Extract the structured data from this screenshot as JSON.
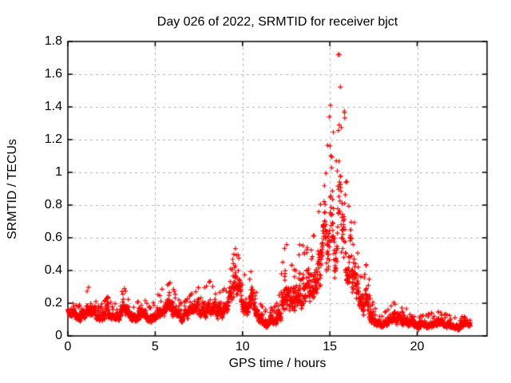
{
  "page": {
    "background": "#ffffff"
  },
  "chart_data": {
    "type": "scatter",
    "title": "Day 026 of 2022, SRMTID for receiver bjct",
    "meta": {
      "day": "026",
      "year": "2022",
      "receiver": "bjct"
    },
    "xlabel": "GPS time / hours",
    "ylabel": "SRMTID / TECUs",
    "xlim": [
      0,
      24
    ],
    "ylim": [
      0,
      1.8
    ],
    "x_ticks": [
      0,
      5,
      10,
      15,
      20
    ],
    "x_tick_labels": [
      "0",
      "5",
      "10",
      "15",
      "20"
    ],
    "y_ticks": [
      0,
      0.2,
      0.4,
      0.6,
      0.8,
      1,
      1.2,
      1.4,
      1.6,
      1.8
    ],
    "y_tick_labels": [
      "0",
      "0.2",
      "0.4",
      "0.6",
      "0.8",
      "1",
      "1.2",
      "1.4",
      "1.6",
      "1.8"
    ],
    "grid": true,
    "legend": false,
    "marker": "plus",
    "marker_color": "#ff0000",
    "marker_size_px": 7,
    "grid_color": "#b3b3b3",
    "axis_color": "#000000",
    "t_start": 0,
    "t_end": 23.05,
    "n_points": 2600,
    "seed": 20220126,
    "noise": {
      "blend": 0.22,
      "spread": 1.6,
      "spike_pow": 14,
      "shape": 1.5
    },
    "envelope_format": [
      "hour",
      "value_min",
      "value_max"
    ],
    "envelope": [
      [
        0.0,
        0.13,
        0.21
      ],
      [
        0.3,
        0.1,
        0.2
      ],
      [
        0.6,
        0.08,
        0.18
      ],
      [
        0.9,
        0.1,
        0.22
      ],
      [
        1.2,
        0.1,
        0.3
      ],
      [
        1.45,
        0.12,
        0.26
      ],
      [
        1.7,
        0.07,
        0.18
      ],
      [
        2.0,
        0.09,
        0.2
      ],
      [
        2.3,
        0.1,
        0.24
      ],
      [
        2.6,
        0.08,
        0.19
      ],
      [
        2.9,
        0.09,
        0.21
      ],
      [
        3.2,
        0.1,
        0.3
      ],
      [
        3.5,
        0.09,
        0.22
      ],
      [
        3.8,
        0.07,
        0.17
      ],
      [
        4.1,
        0.09,
        0.23
      ],
      [
        4.4,
        0.1,
        0.22
      ],
      [
        4.7,
        0.07,
        0.17
      ],
      [
        5.0,
        0.09,
        0.22
      ],
      [
        5.3,
        0.1,
        0.28
      ],
      [
        5.6,
        0.11,
        0.3
      ],
      [
        5.9,
        0.12,
        0.33
      ],
      [
        6.2,
        0.1,
        0.24
      ],
      [
        6.5,
        0.08,
        0.2
      ],
      [
        6.8,
        0.09,
        0.22
      ],
      [
        7.1,
        0.11,
        0.26
      ],
      [
        7.4,
        0.12,
        0.3
      ],
      [
        7.7,
        0.1,
        0.28
      ],
      [
        8.0,
        0.11,
        0.32
      ],
      [
        8.3,
        0.12,
        0.35
      ],
      [
        8.6,
        0.1,
        0.26
      ],
      [
        8.9,
        0.1,
        0.28
      ],
      [
        9.2,
        0.12,
        0.35
      ],
      [
        9.5,
        0.15,
        0.5
      ],
      [
        9.7,
        0.18,
        0.57
      ],
      [
        9.9,
        0.15,
        0.48
      ],
      [
        10.1,
        0.12,
        0.38
      ],
      [
        10.35,
        0.1,
        0.3
      ],
      [
        10.55,
        0.12,
        0.45
      ],
      [
        10.75,
        0.09,
        0.28
      ],
      [
        11.0,
        0.06,
        0.2
      ],
      [
        11.3,
        0.05,
        0.16
      ],
      [
        11.6,
        0.05,
        0.17
      ],
      [
        11.9,
        0.06,
        0.18
      ],
      [
        12.1,
        0.08,
        0.25
      ],
      [
        12.35,
        0.1,
        0.5
      ],
      [
        12.55,
        0.12,
        0.62
      ],
      [
        12.75,
        0.1,
        0.45
      ],
      [
        12.95,
        0.1,
        0.4
      ],
      [
        13.15,
        0.13,
        0.55
      ],
      [
        13.35,
        0.14,
        0.62
      ],
      [
        13.55,
        0.12,
        0.5
      ],
      [
        13.75,
        0.13,
        0.55
      ],
      [
        13.95,
        0.15,
        0.6
      ],
      [
        14.15,
        0.17,
        0.62
      ],
      [
        14.35,
        0.2,
        0.75
      ],
      [
        14.55,
        0.22,
        0.85
      ],
      [
        14.75,
        0.25,
        0.95
      ],
      [
        14.95,
        0.28,
        1.3
      ],
      [
        15.1,
        0.3,
        1.5
      ],
      [
        15.25,
        0.32,
        1.45
      ],
      [
        15.4,
        0.35,
        1.72
      ],
      [
        15.55,
        0.35,
        1.72
      ],
      [
        15.7,
        0.33,
        1.55
      ],
      [
        15.85,
        0.3,
        1.35
      ],
      [
        16.0,
        0.28,
        1.0
      ],
      [
        16.15,
        0.25,
        0.9
      ],
      [
        16.3,
        0.2,
        0.8
      ],
      [
        16.5,
        0.15,
        0.6
      ],
      [
        16.7,
        0.1,
        0.4
      ],
      [
        16.9,
        0.08,
        0.3
      ],
      [
        17.1,
        0.08,
        0.45
      ],
      [
        17.25,
        0.07,
        0.35
      ],
      [
        17.4,
        0.06,
        0.22
      ],
      [
        17.6,
        0.05,
        0.18
      ],
      [
        17.8,
        0.03,
        0.12
      ],
      [
        18.0,
        0.03,
        0.12
      ],
      [
        18.2,
        0.05,
        0.16
      ],
      [
        18.5,
        0.07,
        0.22
      ],
      [
        18.7,
        0.07,
        0.2
      ],
      [
        19.0,
        0.06,
        0.18
      ],
      [
        19.3,
        0.05,
        0.16
      ],
      [
        19.6,
        0.05,
        0.18
      ],
      [
        19.9,
        0.04,
        0.14
      ],
      [
        20.2,
        0.03,
        0.12
      ],
      [
        20.5,
        0.04,
        0.13
      ],
      [
        20.8,
        0.04,
        0.14
      ],
      [
        21.1,
        0.05,
        0.15
      ],
      [
        21.4,
        0.05,
        0.14
      ],
      [
        21.7,
        0.04,
        0.13
      ],
      [
        22.0,
        0.04,
        0.12
      ],
      [
        22.3,
        0.03,
        0.11
      ],
      [
        22.6,
        0.04,
        0.12
      ],
      [
        22.9,
        0.05,
        0.11
      ],
      [
        23.05,
        0.05,
        0.1
      ]
    ]
  }
}
